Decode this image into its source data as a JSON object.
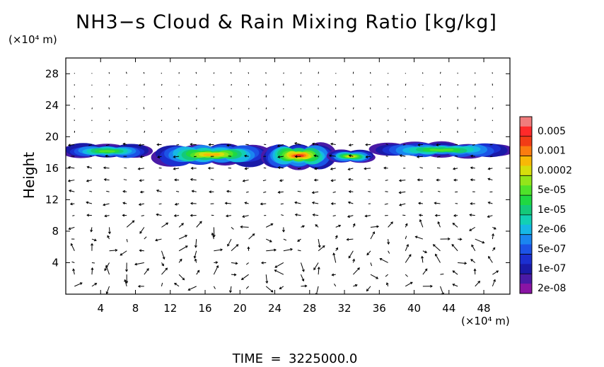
{
  "chart_data": {
    "type": "heatmap",
    "title": "NH3−s Cloud & Rain Mixing Ratio [kg/kg]",
    "ylabel": "Height",
    "y_unit_label": "(×10⁴ m)",
    "x_unit_label": "(×10⁴ m)",
    "xlim": [
      0,
      51
    ],
    "ylim": [
      0,
      30
    ],
    "x_ticks": [
      4,
      8,
      12,
      16,
      20,
      24,
      28,
      32,
      36,
      40,
      44,
      48
    ],
    "y_ticks": [
      4,
      8,
      12,
      16,
      20,
      24,
      28
    ],
    "time_label": "TIME",
    "time_value": "3225000.0",
    "colorbar": {
      "labels": [
        "0.005",
        "0.001",
        "0.0002",
        "5e-05",
        "1e-05",
        "2e-06",
        "5e-07",
        "1e-07",
        "2e-08"
      ],
      "colors": [
        "#f07c7c",
        "#ff2a2a",
        "#f23c16",
        "#fb7c10",
        "#f8b806",
        "#d6de0c",
        "#92e51a",
        "#4fe22a",
        "#1fd842",
        "#14c97a",
        "#12d0b4",
        "#16b7e6",
        "#1a86f0",
        "#1c53e6",
        "#1b2fd0",
        "#1a1aa8",
        "#4a1aa6",
        "#8a14a4"
      ]
    },
    "cloud_layer": {
      "y_bottom": 16.0,
      "y_top": 19.3,
      "segments": [
        {
          "x": [
            0.2,
            9.3
          ],
          "y": [
            17.2,
            19.1
          ],
          "peak": "1e-05"
        },
        {
          "x": [
            10.5,
            23.0
          ],
          "y": [
            16.3,
            19.1
          ],
          "peak": "0.0002"
        },
        {
          "x": [
            23.0,
            30.5
          ],
          "y": [
            16.0,
            19.2
          ],
          "peak": "0.001"
        },
        {
          "x": [
            30.5,
            35.0
          ],
          "y": [
            16.7,
            18.3
          ],
          "peak": "5e-05"
        },
        {
          "x": [
            35.5,
            50.8
          ],
          "y": [
            17.3,
            19.3
          ],
          "peak": "1e-05"
        }
      ]
    }
  }
}
